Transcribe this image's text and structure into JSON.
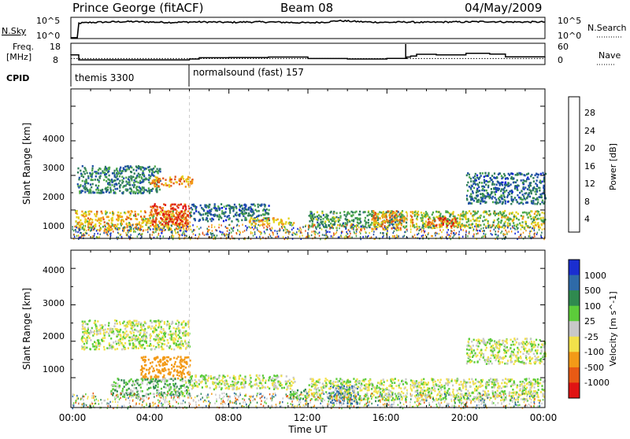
{
  "header": {
    "station": "Prince George (fitACF)",
    "beam": "Beam 08",
    "date": "04/May/2009"
  },
  "noise_panel": {
    "left_label": "N.Sky",
    "right_label": "N.Search",
    "left_ticks": [
      "10^5",
      "10^0"
    ],
    "right_ticks": [
      "10^5",
      "10^0"
    ]
  },
  "freq_panel": {
    "left_label_line1": "Freq.",
    "left_label_line2": "[MHz]",
    "left_ticks": [
      "18",
      "8"
    ],
    "right_label": "Nave",
    "right_ticks": [
      "60",
      "0"
    ]
  },
  "cpid_panel": {
    "label": "CPID",
    "modes": [
      {
        "name": "themis 3300",
        "start_hour": 0
      },
      {
        "name": "normalsound (fast) 157",
        "start_hour": 6
      }
    ]
  },
  "range_axes": {
    "ylabel": "Slant Range [km]",
    "yticks": [
      "1000",
      "2000",
      "3000",
      "4000"
    ],
    "xlabel": "Time UT",
    "xticks": [
      "00:00",
      "04:00",
      "08:00",
      "12:00",
      "16:00",
      "20:00",
      "00:00"
    ]
  },
  "power_bar": {
    "label": "Power [dB]",
    "ticks": [
      "4",
      "8",
      "12",
      "16",
      "20",
      "24",
      "28"
    ],
    "colors": [
      "#0b1fd8",
      "#1e4fa6",
      "#2e7d59",
      "#4da84a",
      "#e3d21b",
      "#f39a17",
      "#e0541a",
      "#e01313"
    ]
  },
  "velocity_bar": {
    "label": "Velocity [m s^-1]",
    "ticks": [
      "1000",
      "500",
      "100",
      "25",
      "-25",
      "-100",
      "-500",
      "-1000"
    ],
    "colors": [
      "#1a2ed0",
      "#2e6aa8",
      "#2f8a4f",
      "#5ccc3a",
      "#c8c8c8",
      "#f2e14a",
      "#f39a17",
      "#e85a14",
      "#e01313"
    ]
  },
  "chart_data": [
    {
      "type": "line",
      "title": "Prince George (fitACF)   Beam 08   04/May/2009",
      "series": [
        {
          "name": "N.Sky",
          "x": [
            0,
            0.4,
            1,
            2,
            3,
            4,
            5,
            6,
            7,
            8,
            9,
            10,
            11,
            12,
            13,
            13.5,
            14,
            15,
            16,
            17,
            18,
            19,
            20,
            21,
            22,
            23,
            24
          ],
          "y": [
            3.6,
            3.6,
            3.8,
            3.9,
            4.0,
            3.9,
            3.8,
            3.9,
            3.9,
            3.8,
            3.9,
            3.9,
            3.8,
            3.7,
            3.9,
            4.2,
            4.1,
            3.9,
            3.8,
            3.9,
            3.8,
            3.9,
            3.9,
            4.0,
            3.9,
            3.9,
            3.9
          ]
        }
      ]
    },
    {
      "type": "line",
      "series": [
        {
          "name": "Freq.",
          "x": [
            0,
            0.4,
            6,
            6.5,
            8,
            10,
            12,
            14,
            16,
            17,
            17.2,
            17.5,
            18.5,
            20,
            21.2,
            22,
            24
          ],
          "y": [
            12.5,
            10.2,
            10.6,
            11.2,
            11.3,
            11.5,
            10.8,
            10.6,
            10.9,
            11.5,
            12.0,
            12.8,
            12.5,
            13.3,
            12.9,
            11.6,
            11.6
          ]
        },
        {
          "name": "Nave",
          "x": [
            0,
            24
          ],
          "y": [
            17,
            17
          ]
        }
      ]
    },
    {
      "type": "heatmap",
      "title": "Power [dB]",
      "xlabel": "Time UT",
      "ylabel": "Slant Range [km]",
      "xlim": [
        0,
        24
      ],
      "ylim": [
        180,
        4500
      ],
      "colorbar": {
        "label": "Power [dB]",
        "ticks": [
          4,
          8,
          12,
          16,
          20,
          24,
          28
        ]
      },
      "regions": [
        {
          "t": [
            0.2,
            6.0
          ],
          "r": [
            420,
            1000
          ],
          "value": 20
        },
        {
          "t": [
            4.0,
            6.0
          ],
          "r": [
            600,
            1200
          ],
          "value": 28
        },
        {
          "t": [
            0.3,
            4.5
          ],
          "r": [
            1500,
            2300
          ],
          "value": 10
        },
        {
          "t": [
            4.0,
            6.2
          ],
          "r": [
            1700,
            2000
          ],
          "value": 22
        },
        {
          "t": [
            6.0,
            10.0
          ],
          "r": [
            700,
            1200
          ],
          "value": 8
        },
        {
          "t": [
            9.0,
            11.3
          ],
          "r": [
            600,
            800
          ],
          "value": 20
        },
        {
          "t": [
            12.0,
            17.0
          ],
          "r": [
            500,
            1000
          ],
          "value": 12
        },
        {
          "t": [
            15.2,
            17.3
          ],
          "r": [
            450,
            1000
          ],
          "value": 22
        },
        {
          "t": [
            17.3,
            24.0
          ],
          "r": [
            500,
            1000
          ],
          "value": 16
        },
        {
          "t": [
            18.0,
            19.5
          ],
          "r": [
            550,
            800
          ],
          "value": 26
        },
        {
          "t": [
            20.0,
            24.0
          ],
          "r": [
            1200,
            2100
          ],
          "value": 8
        }
      ]
    },
    {
      "type": "heatmap",
      "title": "Velocity [m s^-1]",
      "xlabel": "Time UT",
      "ylabel": "Slant Range [km]",
      "xlim": [
        0,
        24
      ],
      "ylim": [
        180,
        4500
      ],
      "colorbar": {
        "label": "Velocity [m s^-1]",
        "ticks": [
          1000,
          500,
          100,
          25,
          -25,
          -100,
          -500,
          -1000
        ]
      },
      "regions": [
        {
          "t": [
            0.5,
            6.0
          ],
          "r": [
            1800,
            2600
          ],
          "value": 0
        },
        {
          "t": [
            3.5,
            6.0
          ],
          "r": [
            1000,
            1600
          ],
          "value": -400
        },
        {
          "t": [
            2.0,
            6.0
          ],
          "r": [
            500,
            1000
          ],
          "value": 70
        },
        {
          "t": [
            6.0,
            11.3
          ],
          "r": [
            700,
            1100
          ],
          "value": 0
        },
        {
          "t": [
            11.0,
            12.0
          ],
          "r": [
            400,
            700
          ],
          "value": 70
        },
        {
          "t": [
            13.0,
            14.5
          ],
          "r": [
            300,
            800
          ],
          "value": 800
        },
        {
          "t": [
            12.0,
            24.0
          ],
          "r": [
            400,
            1000
          ],
          "value": 0
        },
        {
          "t": [
            20.0,
            24.0
          ],
          "r": [
            1400,
            2100
          ],
          "value": 0
        }
      ]
    }
  ]
}
